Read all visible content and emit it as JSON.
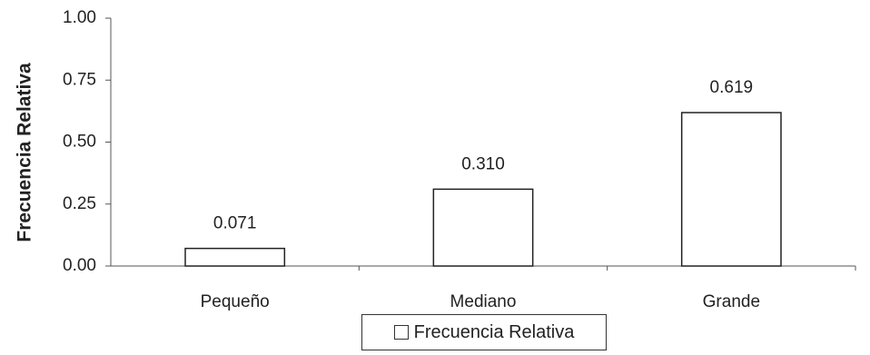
{
  "chart_data": {
    "type": "bar",
    "categories": [
      "Pequeño",
      "Mediano",
      "Grande"
    ],
    "series": [
      {
        "name": "Frecuencia Relativa",
        "values": [
          0.071,
          0.31,
          0.619
        ]
      }
    ],
    "data_labels": [
      "0.071",
      "0.310",
      "0.619"
    ],
    "y_ticks": [
      0.0,
      0.25,
      0.5,
      0.75,
      1.0
    ],
    "y_tick_labels": [
      "0.00",
      "0.25",
      "0.50",
      "0.75",
      "1.00"
    ],
    "ylim": [
      0,
      1
    ],
    "title": "",
    "xlabel": "",
    "ylabel": "Frecuencia Relativa",
    "legend": {
      "position": "bottom",
      "label": "Frecuencia Relativa"
    },
    "grid": false,
    "colors": {
      "bar_fill": "#ffffff",
      "bar_stroke": "#222222",
      "axis": "#555555"
    }
  }
}
